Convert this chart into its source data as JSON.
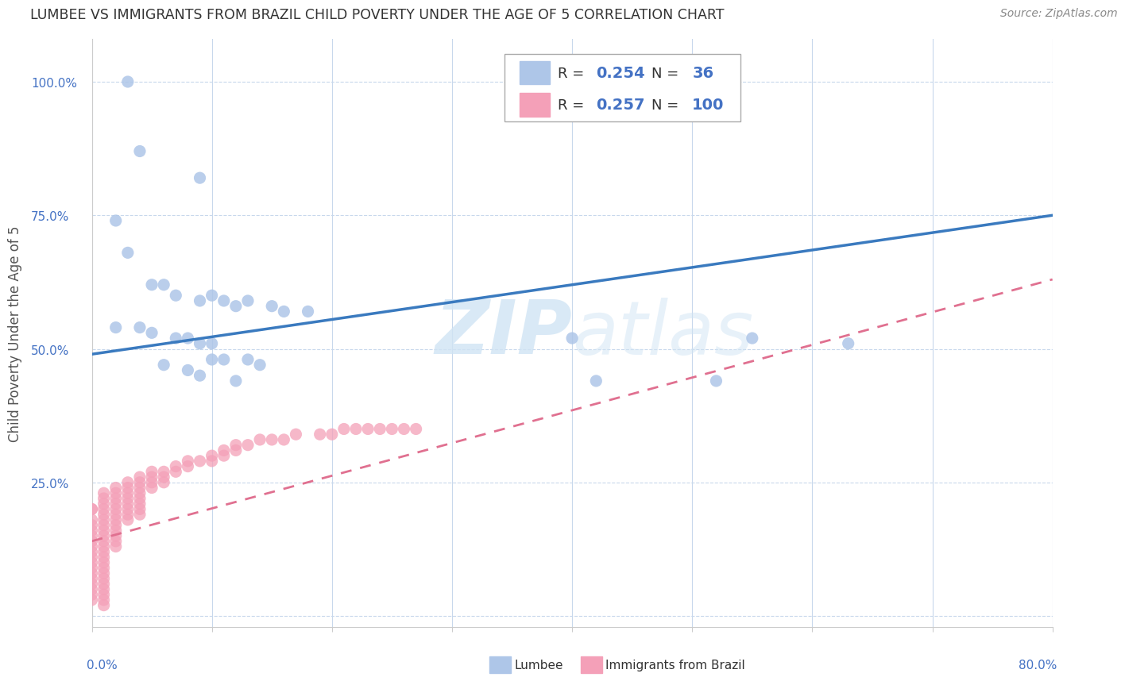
{
  "title": "LUMBEE VS IMMIGRANTS FROM BRAZIL CHILD POVERTY UNDER THE AGE OF 5 CORRELATION CHART",
  "source": "Source: ZipAtlas.com",
  "ylabel": "Child Poverty Under the Age of 5",
  "xlim": [
    0.0,
    0.8
  ],
  "ylim": [
    -0.02,
    1.08
  ],
  "lumbee_R": "0.254",
  "lumbee_N": "36",
  "brazil_R": "0.257",
  "brazil_N": "100",
  "lumbee_color": "#aec6e8",
  "brazil_color": "#f4a0b8",
  "lumbee_line_color": "#3a7abf",
  "brazil_line_color": "#e07090",
  "watermark_color": "#d0e4f4",
  "lumbee_scatter_x": [
    0.03,
    0.04,
    0.09,
    0.02,
    0.03,
    0.05,
    0.06,
    0.07,
    0.09,
    0.1,
    0.11,
    0.12,
    0.13,
    0.15,
    0.16,
    0.18,
    0.02,
    0.04,
    0.05,
    0.07,
    0.08,
    0.09,
    0.1,
    0.1,
    0.11,
    0.13,
    0.14,
    0.06,
    0.08,
    0.09,
    0.12,
    0.4,
    0.55,
    0.63,
    0.42,
    0.52
  ],
  "lumbee_scatter_y": [
    1.0,
    0.87,
    0.82,
    0.74,
    0.68,
    0.62,
    0.62,
    0.6,
    0.59,
    0.6,
    0.59,
    0.58,
    0.59,
    0.58,
    0.57,
    0.57,
    0.54,
    0.54,
    0.53,
    0.52,
    0.52,
    0.51,
    0.51,
    0.48,
    0.48,
    0.48,
    0.47,
    0.47,
    0.46,
    0.45,
    0.44,
    0.52,
    0.52,
    0.51,
    0.44,
    0.44
  ],
  "brazil_scatter_x": [
    0.0,
    0.0,
    0.0,
    0.0,
    0.0,
    0.0,
    0.0,
    0.0,
    0.0,
    0.0,
    0.0,
    0.0,
    0.0,
    0.0,
    0.0,
    0.0,
    0.0,
    0.0,
    0.01,
    0.01,
    0.01,
    0.01,
    0.01,
    0.01,
    0.01,
    0.01,
    0.01,
    0.01,
    0.01,
    0.01,
    0.01,
    0.01,
    0.01,
    0.01,
    0.01,
    0.01,
    0.01,
    0.01,
    0.01,
    0.01,
    0.02,
    0.02,
    0.02,
    0.02,
    0.02,
    0.02,
    0.02,
    0.02,
    0.02,
    0.02,
    0.02,
    0.02,
    0.03,
    0.03,
    0.03,
    0.03,
    0.03,
    0.03,
    0.03,
    0.03,
    0.04,
    0.04,
    0.04,
    0.04,
    0.04,
    0.04,
    0.04,
    0.04,
    0.05,
    0.05,
    0.05,
    0.05,
    0.06,
    0.06,
    0.06,
    0.07,
    0.07,
    0.08,
    0.08,
    0.09,
    0.1,
    0.1,
    0.11,
    0.11,
    0.12,
    0.12,
    0.13,
    0.14,
    0.15,
    0.16,
    0.17,
    0.19,
    0.2,
    0.21,
    0.22,
    0.23,
    0.24,
    0.25,
    0.26,
    0.27
  ],
  "brazil_scatter_y": [
    0.2,
    0.2,
    0.18,
    0.17,
    0.16,
    0.15,
    0.14,
    0.13,
    0.12,
    0.11,
    0.1,
    0.09,
    0.08,
    0.07,
    0.06,
    0.05,
    0.04,
    0.03,
    0.23,
    0.22,
    0.21,
    0.2,
    0.19,
    0.18,
    0.17,
    0.16,
    0.15,
    0.14,
    0.13,
    0.12,
    0.11,
    0.1,
    0.09,
    0.08,
    0.07,
    0.06,
    0.05,
    0.04,
    0.03,
    0.02,
    0.24,
    0.23,
    0.22,
    0.21,
    0.2,
    0.19,
    0.18,
    0.17,
    0.16,
    0.15,
    0.14,
    0.13,
    0.25,
    0.24,
    0.23,
    0.22,
    0.21,
    0.2,
    0.19,
    0.18,
    0.26,
    0.25,
    0.24,
    0.23,
    0.22,
    0.21,
    0.2,
    0.19,
    0.27,
    0.26,
    0.25,
    0.24,
    0.27,
    0.26,
    0.25,
    0.28,
    0.27,
    0.29,
    0.28,
    0.29,
    0.3,
    0.29,
    0.31,
    0.3,
    0.32,
    0.31,
    0.32,
    0.33,
    0.33,
    0.33,
    0.34,
    0.34,
    0.34,
    0.35,
    0.35,
    0.35,
    0.35,
    0.35,
    0.35,
    0.35
  ],
  "lumbee_trend_x0": 0.0,
  "lumbee_trend_y0": 0.49,
  "lumbee_trend_x1": 0.8,
  "lumbee_trend_y1": 0.75,
  "brazil_trend_x0": 0.0,
  "brazil_trend_y0": 0.14,
  "brazil_trend_x1": 0.8,
  "brazil_trend_y1": 0.63
}
